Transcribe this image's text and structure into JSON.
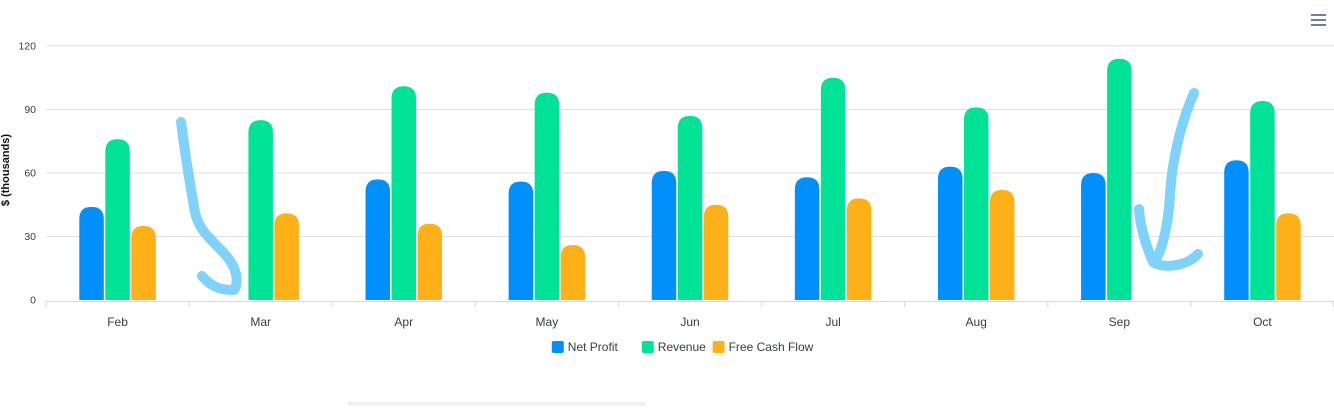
{
  "chart_data": {
    "type": "bar",
    "title": "",
    "xlabel": "",
    "ylabel": "$ (thousands)",
    "ylim": [
      0,
      120
    ],
    "yticks": [
      0,
      30,
      60,
      90,
      120
    ],
    "grid": true,
    "legend_position": "bottom-center",
    "categories": [
      "Feb",
      "Mar",
      "Apr",
      "May",
      "Jun",
      "Jul",
      "Aug",
      "Sep",
      "Oct"
    ],
    "series": [
      {
        "name": "Net Profit",
        "color": "#008ffb",
        "values": [
          44,
          null,
          57,
          56,
          61,
          58,
          63,
          60,
          66
        ]
      },
      {
        "name": "Revenue",
        "color": "#00e396",
        "values": [
          76,
          85,
          101,
          98,
          87,
          105,
          91,
          114,
          94
        ]
      },
      {
        "name": "Free Cash Flow",
        "color": "#feb019",
        "values": [
          35,
          41,
          36,
          26,
          45,
          48,
          52,
          null,
          41
        ]
      }
    ]
  },
  "toolbar": {
    "menu_icon": "hamburger-menu-icon"
  },
  "annotations": {
    "color": "#7fd3fb"
  }
}
